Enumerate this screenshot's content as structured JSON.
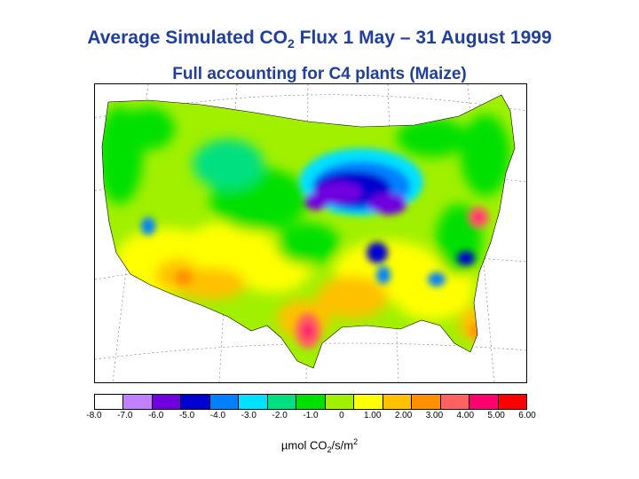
{
  "title": {
    "prefix": "Average Simulated CO",
    "sub": "2",
    "suffix": " Flux  1 May – 31 August 1999"
  },
  "subtitle": "Full accounting for C4 plants (Maize)",
  "legend": {
    "colors": [
      "#ffffff",
      "#c080ff",
      "#7000e0",
      "#0000d0",
      "#0080ff",
      "#00e0ff",
      "#00e080",
      "#00e000",
      "#a0f000",
      "#ffff00",
      "#ffc000",
      "#ff9000",
      "#ff6060",
      "#ff0070",
      "#ff0000"
    ],
    "ticks": [
      "-8.0",
      "-7.0",
      "-6.0",
      "-5.0",
      "-4.0",
      "-3.0",
      "-2.0",
      "-1.0",
      "0",
      "1.00",
      "2.00",
      "3.00",
      "4.00",
      "5.00",
      "6.00"
    ]
  },
  "units": {
    "a": "µmol CO",
    "b": "2",
    "c": "/s/m",
    "d": "2"
  }
}
